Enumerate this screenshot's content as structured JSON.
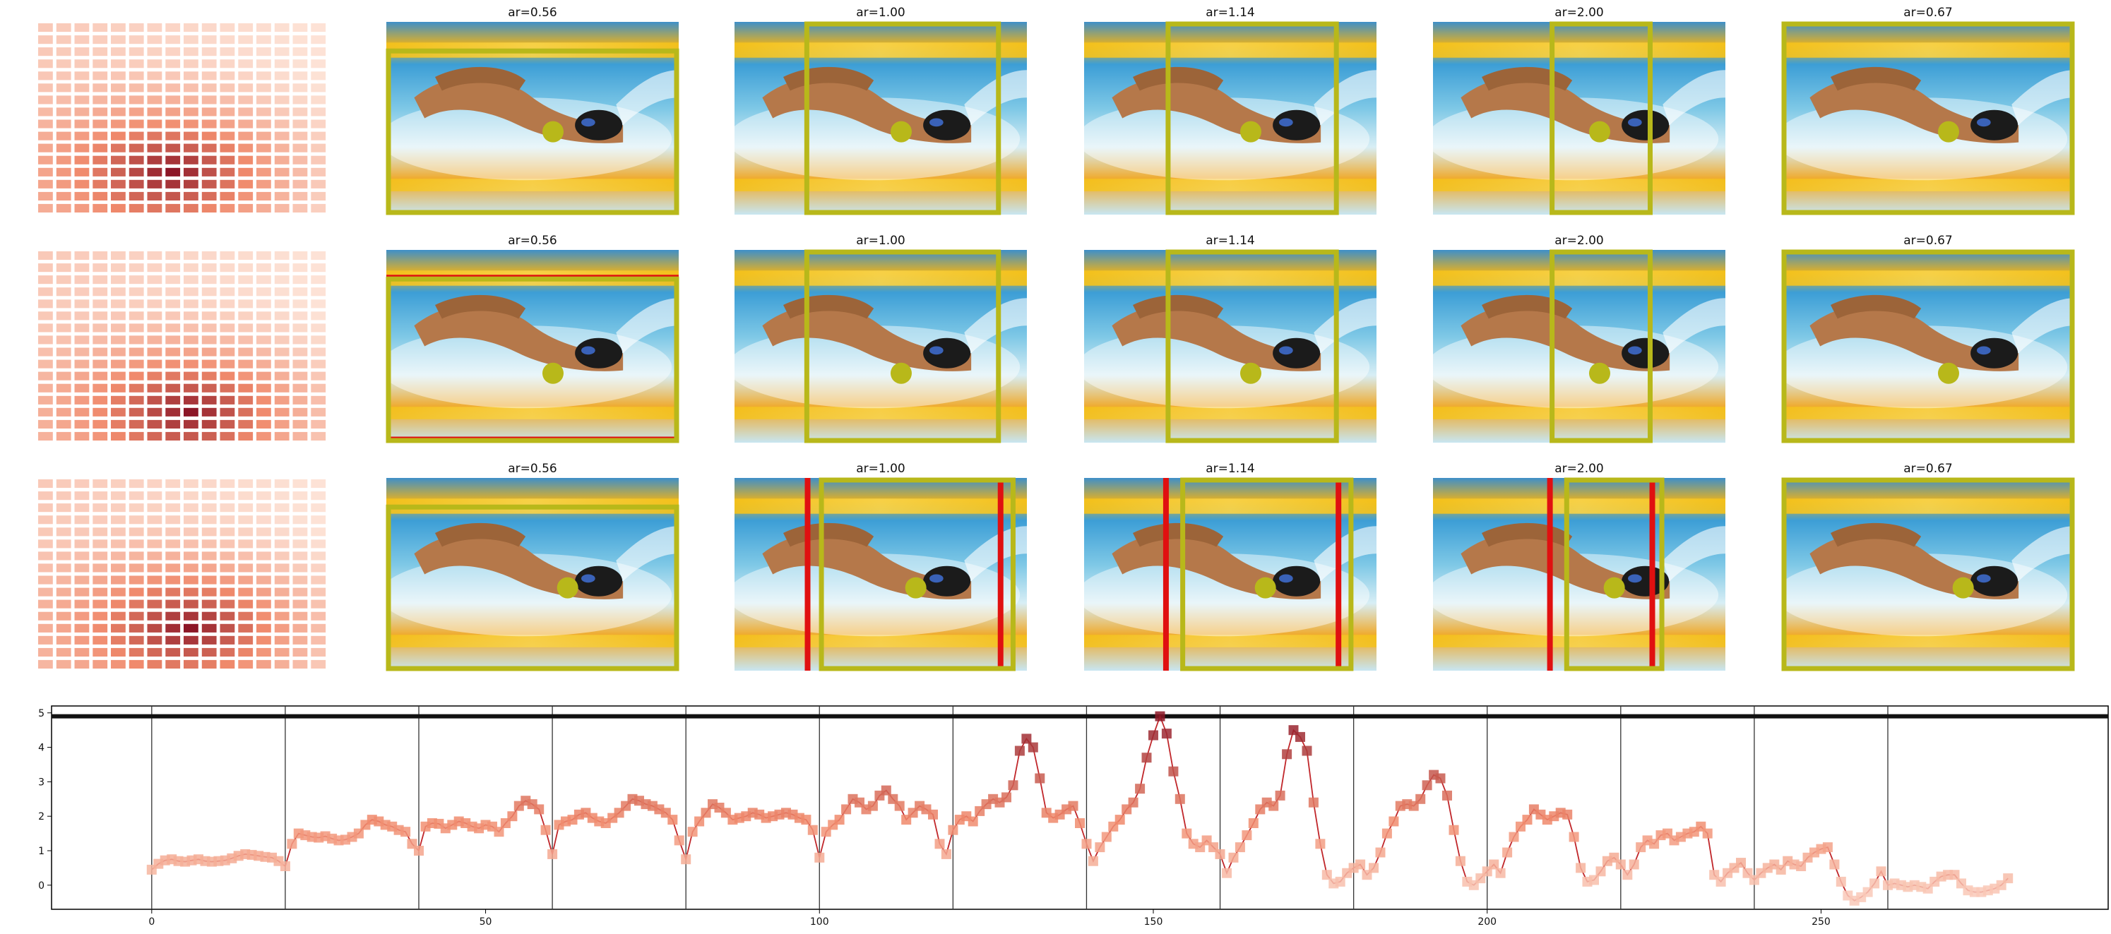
{
  "colors": {
    "highlight_box": "#b8b81a",
    "highlight_dot": "#b8b81a",
    "conflict_line": "#e01010",
    "heat_low": "#fde4d8",
    "heat_mid": "#f08a6c",
    "heat_high": "#8c1626",
    "divider": "#333333",
    "line": "#c0262a"
  },
  "panels": {
    "rows": [
      {
        "heatmap_peak": [
          12,
          7
        ],
        "photos": [
          {
            "title": "ar=0.56",
            "box": [
              0.0,
              0.14,
              1.0,
              1.0
            ],
            "dot": [
              0.57,
              0.57
            ],
            "red_lines": []
          },
          {
            "title": "ar=1.00",
            "box": [
              0.24,
              0.0,
              0.91,
              1.0
            ],
            "dot": [
              0.57,
              0.57
            ],
            "red_lines": []
          },
          {
            "title": "ar=1.14",
            "box": [
              0.28,
              0.0,
              0.87,
              1.0
            ],
            "dot": [
              0.57,
              0.57
            ],
            "red_lines": []
          },
          {
            "title": "ar=2.00",
            "box": [
              0.4,
              0.0,
              0.75,
              1.0
            ],
            "dot": [
              0.57,
              0.57
            ],
            "red_lines": []
          },
          {
            "title": "ar=0.67",
            "box": [
              0.0,
              0.0,
              1.0,
              1.0
            ],
            "dot": [
              0.57,
              0.57
            ],
            "red_lines": []
          }
        ]
      },
      {
        "heatmap_peak": [
          13,
          8
        ],
        "photos": [
          {
            "title": "ar=0.56",
            "box": [
              0.0,
              0.14,
              1.0,
              1.0
            ],
            "dot": [
              0.57,
              0.64
            ],
            "red_lines": [
              [
                "h",
                0.14
              ],
              [
                "h",
                0.98
              ]
            ]
          },
          {
            "title": "ar=1.00",
            "box": [
              0.24,
              0.0,
              0.91,
              1.0
            ],
            "dot": [
              0.57,
              0.64
            ],
            "red_lines": []
          },
          {
            "title": "ar=1.14",
            "box": [
              0.28,
              0.0,
              0.87,
              1.0
            ],
            "dot": [
              0.57,
              0.64
            ],
            "red_lines": []
          },
          {
            "title": "ar=2.00",
            "box": [
              0.4,
              0.0,
              0.75,
              1.0
            ],
            "dot": [
              0.57,
              0.64
            ],
            "red_lines": []
          },
          {
            "title": "ar=0.67",
            "box": [
              0.0,
              0.0,
              1.0,
              1.0
            ],
            "dot": [
              0.57,
              0.64
            ],
            "red_lines": []
          }
        ]
      },
      {
        "heatmap_peak": [
          12,
          8
        ],
        "photos": [
          {
            "title": "ar=0.56",
            "box": [
              0.0,
              0.14,
              1.0,
              1.0
            ],
            "dot": [
              0.62,
              0.57
            ],
            "red_lines": []
          },
          {
            "title": "ar=1.00",
            "box": [
              0.29,
              0.0,
              0.96,
              1.0
            ],
            "dot": [
              0.62,
              0.57
            ],
            "red_lines": [
              [
                "v",
                0.25
              ],
              [
                "v",
                0.91
              ]
            ]
          },
          {
            "title": "ar=1.14",
            "box": [
              0.33,
              0.0,
              0.92,
              1.0
            ],
            "dot": [
              0.62,
              0.57
            ],
            "red_lines": [
              [
                "v",
                0.28
              ],
              [
                "v",
                0.87
              ]
            ]
          },
          {
            "title": "ar=2.00",
            "box": [
              0.45,
              0.0,
              0.79,
              1.0
            ],
            "dot": [
              0.62,
              0.57
            ],
            "red_lines": [
              [
                "v",
                0.4
              ],
              [
                "v",
                0.75
              ]
            ]
          },
          {
            "title": "ar=0.67",
            "box": [
              0.0,
              0.0,
              1.0,
              1.0
            ],
            "dot": [
              0.62,
              0.57
            ],
            "red_lines": []
          }
        ]
      }
    ]
  },
  "chart_data": {
    "type": "line",
    "title": "",
    "xlabel": "",
    "ylabel": "",
    "xlim": [
      -15,
      293
    ],
    "ylim": [
      -0.7,
      5.2
    ],
    "xticks": [
      0,
      50,
      100,
      150,
      200,
      250
    ],
    "xtick_labels": [
      "0",
      "50",
      "100",
      "150",
      "200",
      "250"
    ],
    "yticks": [
      0,
      1,
      2,
      3,
      4,
      5
    ],
    "ytick_labels": [
      "0",
      "1",
      "2",
      "3",
      "4",
      "5"
    ],
    "grid": false,
    "reference_line_y": 4.9,
    "segment_boundaries": [
      0,
      20,
      40,
      60,
      80,
      100,
      120,
      140,
      160,
      180,
      200,
      220,
      240,
      260
    ],
    "series_x": [
      0,
      1,
      2,
      3,
      4,
      5,
      6,
      7,
      8,
      9,
      10,
      11,
      12,
      13,
      14,
      15,
      16,
      17,
      18,
      19,
      20,
      21,
      22,
      23,
      24,
      25,
      26,
      27,
      28,
      29,
      30,
      31,
      32,
      33,
      34,
      35,
      36,
      37,
      38,
      39,
      40,
      41,
      42,
      43,
      44,
      45,
      46,
      47,
      48,
      49,
      50,
      51,
      52,
      53,
      54,
      55,
      56,
      57,
      58,
      59,
      60,
      61,
      62,
      63,
      64,
      65,
      66,
      67,
      68,
      69,
      70,
      71,
      72,
      73,
      74,
      75,
      76,
      77,
      78,
      79,
      80,
      81,
      82,
      83,
      84,
      85,
      86,
      87,
      88,
      89,
      90,
      91,
      92,
      93,
      94,
      95,
      96,
      97,
      98,
      99,
      100,
      101,
      102,
      103,
      104,
      105,
      106,
      107,
      108,
      109,
      110,
      111,
      112,
      113,
      114,
      115,
      116,
      117,
      118,
      119,
      120,
      121,
      122,
      123,
      124,
      125,
      126,
      127,
      128,
      129,
      130,
      131,
      132,
      133,
      134,
      135,
      136,
      137,
      138,
      139,
      140,
      141,
      142,
      143,
      144,
      145,
      146,
      147,
      148,
      149,
      150,
      151,
      152,
      153,
      154,
      155,
      156,
      157,
      158,
      159,
      160,
      161,
      162,
      163,
      164,
      165,
      166,
      167,
      168,
      169,
      170,
      171,
      172,
      173,
      174,
      175,
      176,
      177,
      178,
      179,
      180,
      181,
      182,
      183,
      184,
      185,
      186,
      187,
      188,
      189,
      190,
      191,
      192,
      193,
      194,
      195,
      196,
      197,
      198,
      199,
      200,
      201,
      202,
      203,
      204,
      205,
      206,
      207,
      208,
      209,
      210,
      211,
      212,
      213,
      214,
      215,
      216,
      217,
      218,
      219,
      220,
      221,
      222,
      223,
      224,
      225,
      226,
      227,
      228,
      229,
      230,
      231,
      232,
      233,
      234,
      235,
      236,
      237,
      238,
      239,
      240,
      241,
      242,
      243,
      244,
      245,
      246,
      247,
      248,
      249,
      250,
      251,
      252,
      253,
      254,
      255,
      256,
      257,
      258,
      259,
      260,
      261,
      262,
      263,
      264,
      265,
      266,
      267,
      268,
      269,
      270,
      271,
      272,
      273,
      274,
      275,
      276,
      277,
      278,
      279
    ],
    "series_y": [
      0.45,
      0.62,
      0.72,
      0.75,
      0.7,
      0.68,
      0.72,
      0.75,
      0.7,
      0.68,
      0.7,
      0.72,
      0.78,
      0.85,
      0.9,
      0.88,
      0.85,
      0.82,
      0.8,
      0.7,
      0.55,
      1.2,
      1.5,
      1.45,
      1.4,
      1.38,
      1.42,
      1.35,
      1.3,
      1.32,
      1.4,
      1.5,
      1.75,
      1.9,
      1.85,
      1.75,
      1.7,
      1.6,
      1.55,
      1.2,
      1.0,
      1.7,
      1.8,
      1.78,
      1.65,
      1.75,
      1.85,
      1.8,
      1.7,
      1.65,
      1.75,
      1.7,
      1.55,
      1.8,
      2.0,
      2.3,
      2.45,
      2.35,
      2.2,
      1.6,
      0.9,
      1.75,
      1.85,
      1.9,
      2.05,
      2.1,
      1.95,
      1.85,
      1.8,
      1.95,
      2.1,
      2.3,
      2.5,
      2.45,
      2.35,
      2.3,
      2.2,
      2.1,
      1.9,
      1.3,
      0.75,
      1.55,
      1.85,
      2.1,
      2.35,
      2.25,
      2.1,
      1.9,
      1.95,
      2.0,
      2.1,
      2.05,
      1.95,
      2.0,
      2.05,
      2.1,
      2.05,
      1.95,
      1.9,
      1.6,
      0.8,
      1.55,
      1.75,
      1.9,
      2.2,
      2.5,
      2.4,
      2.2,
      2.3,
      2.6,
      2.75,
      2.5,
      2.3,
      1.9,
      2.1,
      2.3,
      2.2,
      2.05,
      1.2,
      0.9,
      1.6,
      1.9,
      2.0,
      1.85,
      2.15,
      2.35,
      2.5,
      2.4,
      2.55,
      2.9,
      3.9,
      4.25,
      4.0,
      3.1,
      2.1,
      1.95,
      2.05,
      2.2,
      2.3,
      1.8,
      1.2,
      0.7,
      1.1,
      1.4,
      1.7,
      1.9,
      2.2,
      2.4,
      2.8,
      3.7,
      4.35,
      4.9,
      4.4,
      3.3,
      2.5,
      1.5,
      1.2,
      1.1,
      1.3,
      1.1,
      0.9,
      0.35,
      0.8,
      1.1,
      1.45,
      1.8,
      2.2,
      2.4,
      2.3,
      2.6,
      3.8,
      4.5,
      4.3,
      3.9,
      2.4,
      1.2,
      0.3,
      0.05,
      0.1,
      0.35,
      0.5,
      0.6,
      0.3,
      0.5,
      0.95,
      1.5,
      1.85,
      2.3,
      2.35,
      2.3,
      2.5,
      2.9,
      3.2,
      3.1,
      2.6,
      1.6,
      0.7,
      0.1,
      0.0,
      0.2,
      0.4,
      0.6,
      0.35,
      0.95,
      1.4,
      1.7,
      1.9,
      2.2,
      2.05,
      1.9,
      2.0,
      2.1,
      2.05,
      1.4,
      0.5,
      0.1,
      0.15,
      0.4,
      0.7,
      0.8,
      0.6,
      0.3,
      0.6,
      1.1,
      1.3,
      1.2,
      1.45,
      1.5,
      1.3,
      1.4,
      1.5,
      1.55,
      1.7,
      1.5,
      0.3,
      0.1,
      0.35,
      0.5,
      0.65,
      0.35,
      0.15,
      0.35,
      0.5,
      0.6,
      0.45,
      0.7,
      0.6,
      0.55,
      0.8,
      0.95,
      1.05,
      1.1,
      0.6,
      0.1,
      -0.3,
      -0.45,
      -0.35,
      -0.2,
      0.05,
      0.4,
      0.0,
      0.05,
      0.0,
      -0.05,
      0.0,
      -0.05,
      -0.1,
      0.1,
      0.25,
      0.3,
      0.3,
      0.05,
      -0.15,
      -0.2,
      -0.2,
      -0.15,
      -0.1,
      0.0,
      0.2
    ]
  }
}
